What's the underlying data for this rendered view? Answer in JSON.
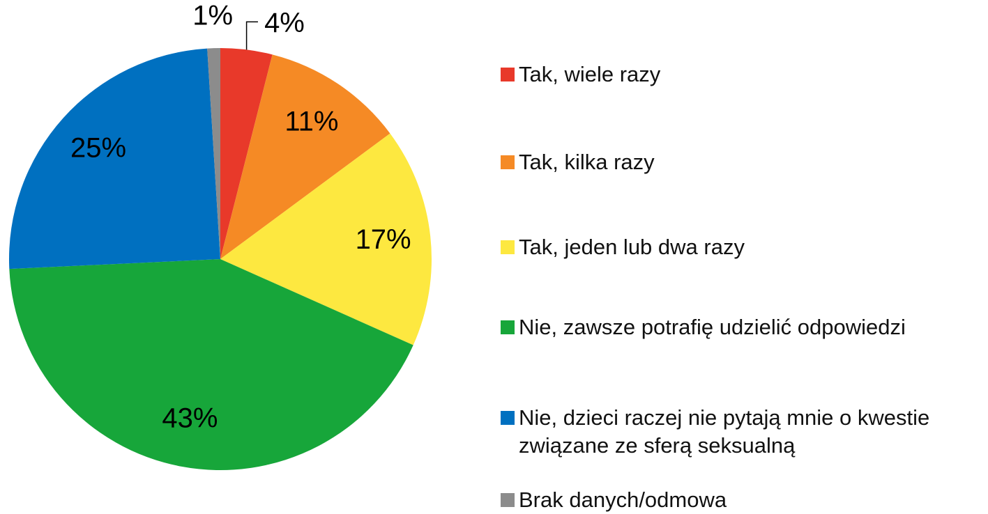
{
  "chart_data": {
    "type": "pie",
    "categories": [
      "Tak, wiele razy",
      "Tak, kilka razy",
      "Tak, jeden lub dwa razy",
      "Nie, zawsze potrafię udzielić odpowiedzi",
      "Nie, dzieci raczej nie pytają mnie o kwestie związane ze sferą seksualną",
      "Brak danych/odmowa"
    ],
    "values": [
      4,
      11,
      17,
      43,
      25,
      1
    ],
    "value_labels": [
      "4%",
      "11%",
      "17%",
      "43%",
      "25%",
      "1%"
    ],
    "colors": [
      "#e8392a",
      "#f58a25",
      "#fde840",
      "#17a63a",
      "#0070c0",
      "#8c8c8c"
    ],
    "legend": "right"
  }
}
